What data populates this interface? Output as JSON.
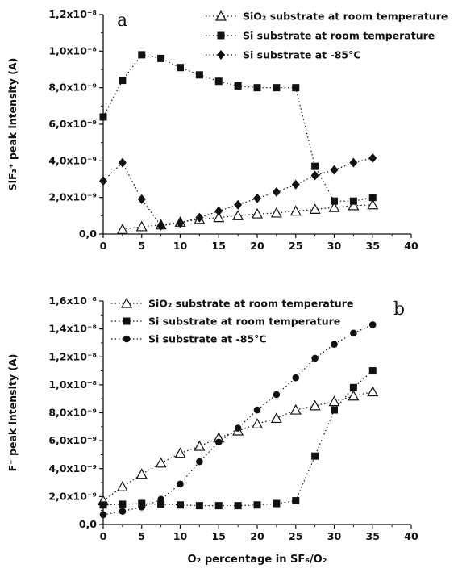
{
  "chart_data": [
    {
      "type": "scatter",
      "panel_label": "a",
      "ylabel": "SiF₃⁺ peak intensity (A)",
      "xlabel": "",
      "xlim": [
        0,
        40
      ],
      "ylim": [
        0,
        1.2e-08
      ],
      "x_ticks": [
        "0",
        "5",
        "10",
        "15",
        "20",
        "25",
        "30",
        "35",
        "40"
      ],
      "y_ticks": [
        {
          "value": 0,
          "label": "0,0"
        },
        {
          "value": 2e-09,
          "label": "2,0x10⁻⁹"
        },
        {
          "value": 4e-09,
          "label": "4,0x10⁻⁹"
        },
        {
          "value": 6e-09,
          "label": "6,0x10⁻⁹"
        },
        {
          "value": 8e-09,
          "label": "8,0x10⁻⁹"
        },
        {
          "value": 1e-08,
          "label": "1,0x10⁻⁸"
        },
        {
          "value": 1.2e-08,
          "label": "1,2x10⁻⁸"
        }
      ],
      "legend_position": "top-right",
      "series": [
        {
          "name": "SiO₂ substrate at room temperature",
          "marker": "triangle-open",
          "x": [
            2.5,
            5,
            7.5,
            10,
            12.5,
            15,
            17.5,
            20,
            22.5,
            25,
            27.5,
            30,
            32.5,
            35
          ],
          "y": [
            2.5e-10,
            4e-10,
            5e-10,
            6.5e-10,
            8e-10,
            9e-10,
            1e-09,
            1.1e-09,
            1.15e-09,
            1.25e-09,
            1.35e-09,
            1.45e-09,
            1.55e-09,
            1.6e-09
          ]
        },
        {
          "name": "Si substrate at room temperature",
          "marker": "square-filled",
          "x": [
            0,
            2.5,
            5,
            7.5,
            10,
            12.5,
            15,
            17.5,
            20,
            22.5,
            25,
            27.5,
            30,
            32.5,
            35
          ],
          "y": [
            6.4e-09,
            8.4e-09,
            9.8e-09,
            9.6e-09,
            9.1e-09,
            8.7e-09,
            8.35e-09,
            8.1e-09,
            8e-09,
            8e-09,
            8e-09,
            3.7e-09,
            1.8e-09,
            1.8e-09,
            2e-09
          ]
        },
        {
          "name": "Si substrate at -85°C",
          "marker": "diamond-filled",
          "x": [
            0,
            2.5,
            5,
            7.5,
            10,
            12.5,
            15,
            17.5,
            20,
            22.5,
            25,
            27.5,
            30,
            32.5,
            35
          ],
          "y": [
            2.9e-09,
            3.9e-09,
            1.9e-09,
            4.5e-10,
            6e-10,
            9e-10,
            1.25e-09,
            1.6e-09,
            1.95e-09,
            2.3e-09,
            2.7e-09,
            3.2e-09,
            3.5e-09,
            3.9e-09,
            4.15e-09
          ]
        }
      ]
    },
    {
      "type": "scatter",
      "panel_label": "b",
      "ylabel": "F⁺ peak intensity (A)",
      "xlabel": "O₂ percentage in SF₆/O₂",
      "xlim": [
        0,
        40
      ],
      "ylim": [
        0,
        1.6e-08
      ],
      "x_ticks": [
        "0",
        "5",
        "10",
        "15",
        "20",
        "25",
        "30",
        "35",
        "40"
      ],
      "y_ticks": [
        {
          "value": 0,
          "label": "0,0"
        },
        {
          "value": 2e-09,
          "label": "2,0x10⁻⁹"
        },
        {
          "value": 4e-09,
          "label": "4,0x10⁻⁹"
        },
        {
          "value": 6e-09,
          "label": "6,0x10⁻⁹"
        },
        {
          "value": 8e-09,
          "label": "8,0x10⁻⁹"
        },
        {
          "value": 1e-08,
          "label": "1,0x10⁻⁸"
        },
        {
          "value": 1.2e-08,
          "label": "1,2x10⁻⁸"
        },
        {
          "value": 1.4e-08,
          "label": "1,4x10⁻⁸"
        },
        {
          "value": 1.6e-08,
          "label": "1,6x10⁻⁸"
        }
      ],
      "legend_position": "top-left",
      "series": [
        {
          "name": "SiO₂ substrate at room temperature",
          "marker": "triangle-open",
          "x": [
            0,
            2.5,
            5,
            7.5,
            10,
            12.5,
            15,
            17.5,
            20,
            22.5,
            25,
            27.5,
            30,
            32.5,
            35
          ],
          "y": [
            1.7e-09,
            2.7e-09,
            3.6e-09,
            4.4e-09,
            5.1e-09,
            5.6e-09,
            6.2e-09,
            6.7e-09,
            7.2e-09,
            7.6e-09,
            8.2e-09,
            8.5e-09,
            8.8e-09,
            9.2e-09,
            9.5e-09
          ]
        },
        {
          "name": "Si substrate at room temperature",
          "marker": "square-filled",
          "x": [
            0,
            2.5,
            5,
            7.5,
            10,
            12.5,
            15,
            17.5,
            20,
            22.5,
            25,
            27.5,
            30,
            32.5,
            35
          ],
          "y": [
            1.4e-09,
            1.45e-09,
            1.5e-09,
            1.45e-09,
            1.4e-09,
            1.35e-09,
            1.35e-09,
            1.35e-09,
            1.4e-09,
            1.5e-09,
            1.7e-09,
            4.9e-09,
            8.2e-09,
            9.8e-09,
            1.1e-08
          ]
        },
        {
          "name": "Si substrate at -85°C",
          "marker": "circle-filled",
          "x": [
            0,
            2.5,
            5,
            7.5,
            10,
            12.5,
            15,
            17.5,
            20,
            22.5,
            25,
            27.5,
            30,
            32.5,
            35
          ],
          "y": [
            7e-10,
            9.5e-10,
            1.25e-09,
            1.8e-09,
            2.9e-09,
            4.5e-09,
            5.9e-09,
            6.9e-09,
            8.2e-09,
            9.3e-09,
            1.05e-08,
            1.19e-08,
            1.29e-08,
            1.37e-08,
            1.43e-08
          ]
        }
      ]
    }
  ]
}
